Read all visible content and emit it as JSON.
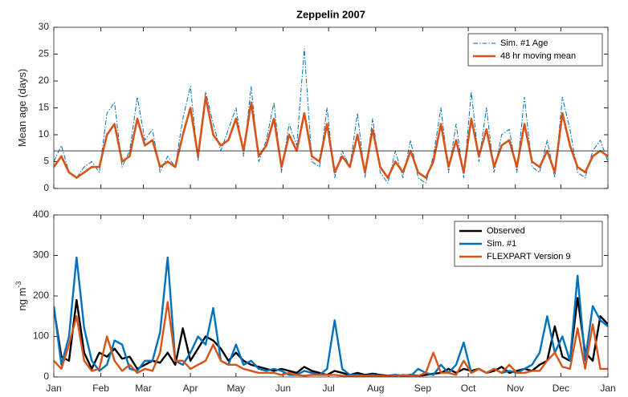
{
  "chart_data": [
    {
      "type": "line",
      "title": "Zeppelin 2007",
      "ylabel": "Mean age (days)",
      "x": [
        0,
        5,
        10,
        15,
        20,
        25,
        30,
        35,
        40,
        45,
        50,
        55,
        60,
        65,
        70,
        75,
        80,
        85,
        90,
        95,
        100,
        105,
        110,
        115,
        120,
        125,
        130,
        135,
        140,
        145,
        150,
        155,
        160,
        165,
        170,
        175,
        180,
        185,
        190,
        195,
        200,
        205,
        210,
        215,
        220,
        225,
        230,
        235,
        240,
        245,
        250,
        255,
        260,
        265,
        270,
        275,
        280,
        285,
        290,
        295,
        300,
        305,
        310,
        315,
        320,
        325,
        330,
        335,
        340,
        345,
        350,
        355,
        360,
        365
      ],
      "xlim": [
        0,
        365
      ],
      "xticks": [
        0,
        31,
        59,
        90,
        120,
        151,
        181,
        212,
        243,
        273,
        304,
        334,
        365
      ],
      "ylim": [
        0,
        30
      ],
      "yticks": [
        0,
        5,
        10,
        15,
        20,
        25,
        30
      ],
      "legend": "top-right",
      "reference_line": {
        "y": 7,
        "color": "#404040"
      },
      "series": [
        {
          "name": "Sim. #1 Age",
          "color": "#0072bd",
          "dash": "dashdot",
          "width": 1,
          "values": [
            5,
            8,
            3,
            2,
            4,
            5,
            3,
            14,
            16,
            4,
            7,
            17,
            9,
            11,
            3,
            6,
            4,
            13,
            19,
            5,
            18,
            12,
            7,
            11,
            15,
            6,
            19,
            5,
            9,
            16,
            3,
            12,
            8,
            26,
            5,
            4,
            15,
            2,
            7,
            4,
            14,
            2,
            13,
            3,
            1,
            7,
            2,
            9,
            2,
            1,
            6,
            15,
            3,
            12,
            2,
            18,
            5,
            15,
            3,
            10,
            11,
            3,
            17,
            4,
            3,
            9,
            2,
            17,
            11,
            3,
            2,
            7,
            9,
            5
          ]
        },
        {
          "name": "48 hr moving mean",
          "color": "#d95319",
          "dash": "solid",
          "width": 2.6,
          "values": [
            4,
            6,
            3,
            2,
            3,
            4,
            4,
            10,
            12,
            5,
            6,
            13,
            8,
            9,
            4,
            5,
            4,
            10,
            15,
            6,
            17,
            10,
            8,
            9,
            13,
            7,
            16,
            6,
            8,
            13,
            4,
            10,
            7,
            14,
            6,
            5,
            12,
            3,
            6,
            4,
            10,
            3,
            11,
            4,
            2,
            5,
            3,
            7,
            3,
            2,
            5,
            12,
            4,
            9,
            3,
            13,
            6,
            11,
            4,
            8,
            9,
            4,
            12,
            5,
            4,
            7,
            3,
            14,
            8,
            4,
            3,
            6,
            7,
            6
          ]
        }
      ]
    },
    {
      "type": "line",
      "ylabel": "ng m",
      "ylabel_superscript": "-3",
      "x": [
        0,
        5,
        10,
        15,
        20,
        25,
        30,
        35,
        40,
        45,
        50,
        55,
        60,
        65,
        70,
        75,
        80,
        85,
        90,
        95,
        100,
        105,
        110,
        115,
        120,
        125,
        130,
        135,
        140,
        145,
        150,
        155,
        160,
        165,
        170,
        175,
        180,
        185,
        190,
        195,
        200,
        205,
        210,
        215,
        220,
        225,
        230,
        235,
        240,
        245,
        250,
        255,
        260,
        265,
        270,
        275,
        280,
        285,
        290,
        295,
        300,
        305,
        310,
        315,
        320,
        325,
        330,
        335,
        340,
        345,
        350,
        355,
        360,
        365
      ],
      "xlim": [
        0,
        365
      ],
      "xticks": [
        {
          "value": 0,
          "label": "Jan"
        },
        {
          "value": 31,
          "label": "Feb"
        },
        {
          "value": 59,
          "label": "Mar"
        },
        {
          "value": 90,
          "label": "Apr"
        },
        {
          "value": 120,
          "label": "May"
        },
        {
          "value": 151,
          "label": "Jun"
        },
        {
          "value": 181,
          "label": "Jul"
        },
        {
          "value": 212,
          "label": "Aug"
        },
        {
          "value": 243,
          "label": "Sep"
        },
        {
          "value": 273,
          "label": "Oct"
        },
        {
          "value": 304,
          "label": "Nov"
        },
        {
          "value": 334,
          "label": "Dec"
        },
        {
          "value": 365,
          "label": "Jan"
        }
      ],
      "ylim": [
        0,
        400
      ],
      "yticks": [
        0,
        100,
        200,
        300,
        400
      ],
      "legend": "top-right",
      "series": [
        {
          "name": "Observed",
          "color": "#000000",
          "dash": "solid",
          "width": 2.4,
          "values": [
            170,
            50,
            40,
            190,
            60,
            20,
            60,
            50,
            70,
            45,
            50,
            20,
            30,
            40,
            35,
            60,
            30,
            120,
            40,
            70,
            100,
            90,
            70,
            40,
            60,
            40,
            30,
            25,
            20,
            15,
            20,
            15,
            10,
            25,
            15,
            10,
            5,
            15,
            10,
            5,
            10,
            5,
            8,
            5,
            3,
            5,
            3,
            5,
            3,
            5,
            8,
            10,
            20,
            10,
            20,
            15,
            20,
            10,
            15,
            25,
            10,
            15,
            20,
            15,
            30,
            40,
            125,
            50,
            40,
            195,
            60,
            40,
            150,
            130
          ]
        },
        {
          "name": "Sim. #1",
          "color": "#0072bd",
          "dash": "solid",
          "width": 2.4,
          "values": [
            175,
            30,
            100,
            295,
            120,
            40,
            15,
            30,
            90,
            80,
            20,
            15,
            40,
            40,
            110,
            295,
            40,
            30,
            60,
            100,
            80,
            170,
            40,
            30,
            80,
            30,
            40,
            20,
            15,
            20,
            15,
            5,
            5,
            15,
            10,
            5,
            20,
            140,
            20,
            5,
            5,
            3,
            5,
            3,
            2,
            5,
            3,
            2,
            20,
            10,
            5,
            30,
            10,
            30,
            85,
            10,
            20,
            10,
            20,
            10,
            15,
            10,
            20,
            30,
            60,
            150,
            60,
            100,
            40,
            250,
            40,
            175,
            140,
            125
          ]
        },
        {
          "name": "FLEXPART Version 9",
          "color": "#d95319",
          "dash": "solid",
          "width": 2.4,
          "values": [
            40,
            20,
            80,
            150,
            40,
            15,
            20,
            100,
            40,
            15,
            30,
            10,
            20,
            15,
            60,
            185,
            40,
            40,
            20,
            30,
            40,
            80,
            40,
            30,
            30,
            20,
            15,
            10,
            10,
            10,
            5,
            10,
            5,
            3,
            5,
            5,
            5,
            5,
            3,
            2,
            3,
            2,
            2,
            2,
            2,
            2,
            5,
            3,
            3,
            10,
            60,
            10,
            10,
            5,
            40,
            10,
            20,
            10,
            20,
            10,
            30,
            10,
            10,
            15,
            15,
            40,
            60,
            25,
            20,
            120,
            20,
            130,
            20,
            20
          ]
        }
      ]
    }
  ]
}
